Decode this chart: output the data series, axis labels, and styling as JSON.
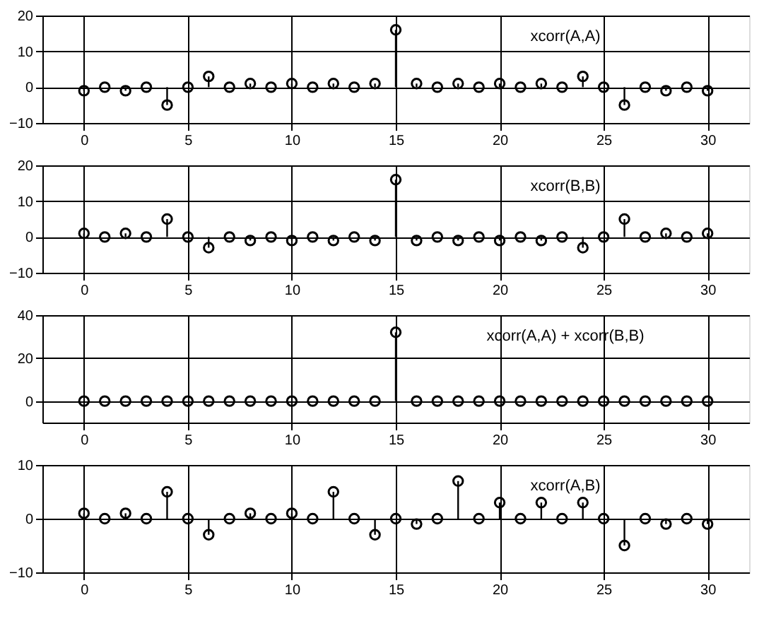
{
  "chart_data": [
    {
      "type": "lollipop",
      "annotations": [
        "xcorr(A,A)"
      ],
      "x": [
        0,
        1,
        2,
        3,
        4,
        5,
        6,
        7,
        8,
        9,
        10,
        11,
        12,
        13,
        14,
        15,
        16,
        17,
        18,
        19,
        20,
        21,
        22,
        23,
        24,
        25,
        26,
        27,
        28,
        29,
        30
      ],
      "values": [
        -1,
        0,
        -1,
        0,
        -5,
        0,
        3,
        0,
        1,
        0,
        1,
        0,
        1,
        0,
        1,
        16,
        1,
        0,
        1,
        0,
        1,
        0,
        1,
        0,
        3,
        0,
        -5,
        0,
        -1,
        0,
        -1
      ],
      "color": "#000000",
      "xlim": [
        -2,
        32
      ],
      "xticks": [
        0,
        5,
        10,
        15,
        20,
        25,
        30
      ],
      "ylim": [
        -10,
        20
      ],
      "yticks": [
        -10,
        0,
        10,
        20
      ],
      "grid": true,
      "marker": "circle"
    },
    {
      "type": "lollipop",
      "annotations": [
        "xcorr(B,B)"
      ],
      "x": [
        0,
        1,
        2,
        3,
        4,
        5,
        6,
        7,
        8,
        9,
        10,
        11,
        12,
        13,
        14,
        15,
        16,
        17,
        18,
        19,
        20,
        21,
        22,
        23,
        24,
        25,
        26,
        27,
        28,
        29,
        30
      ],
      "values": [
        1,
        0,
        1,
        0,
        5,
        0,
        -3,
        0,
        -1,
        0,
        -1,
        0,
        -1,
        0,
        -1,
        16,
        -1,
        0,
        -1,
        0,
        -1,
        0,
        -1,
        0,
        -3,
        0,
        5,
        0,
        1,
        0,
        1
      ],
      "color": "#000000",
      "xlim": [
        -2,
        32
      ],
      "xticks": [
        0,
        5,
        10,
        15,
        20,
        25,
        30
      ],
      "ylim": [
        -10,
        20
      ],
      "yticks": [
        -10,
        0,
        10,
        20
      ],
      "grid": true,
      "marker": "circle"
    },
    {
      "type": "lollipop",
      "annotations": [
        "xcorr(A,A) + xcorr(B,B)"
      ],
      "x": [
        0,
        1,
        2,
        3,
        4,
        5,
        6,
        7,
        8,
        9,
        10,
        11,
        12,
        13,
        14,
        15,
        16,
        17,
        18,
        19,
        20,
        21,
        22,
        23,
        24,
        25,
        26,
        27,
        28,
        29,
        30
      ],
      "values": [
        0,
        0,
        0,
        0,
        0,
        0,
        0,
        0,
        0,
        0,
        0,
        0,
        0,
        0,
        0,
        32,
        0,
        0,
        0,
        0,
        0,
        0,
        0,
        0,
        0,
        0,
        0,
        0,
        0,
        0,
        0
      ],
      "color": "#000000",
      "xlim": [
        -2,
        32
      ],
      "xticks": [
        0,
        5,
        10,
        15,
        20,
        25,
        30
      ],
      "ylim": [
        -10,
        40
      ],
      "yticks": [
        0,
        20,
        40
      ],
      "grid": true,
      "marker": "circle"
    },
    {
      "type": "lollipop",
      "annotations": [
        "xcorr(A,B)"
      ],
      "x": [
        0,
        1,
        2,
        3,
        4,
        5,
        6,
        7,
        8,
        9,
        10,
        11,
        12,
        13,
        14,
        15,
        16,
        17,
        18,
        19,
        20,
        21,
        22,
        23,
        24,
        25,
        26,
        27,
        28,
        29,
        30
      ],
      "values": [
        1,
        0,
        1,
        0,
        5,
        0,
        -3,
        0,
        1,
        0,
        1,
        0,
        5,
        0,
        -3,
        0,
        -1,
        0,
        7,
        0,
        3,
        0,
        3,
        0,
        3,
        0,
        -5,
        0,
        -1,
        0,
        -1
      ],
      "color": "#000000",
      "xlim": [
        -2,
        32
      ],
      "xticks": [
        0,
        5,
        10,
        15,
        20,
        25,
        30
      ],
      "ylim": [
        -10,
        10
      ],
      "yticks": [
        -10,
        0,
        10
      ],
      "grid": true,
      "marker": "circle"
    }
  ]
}
